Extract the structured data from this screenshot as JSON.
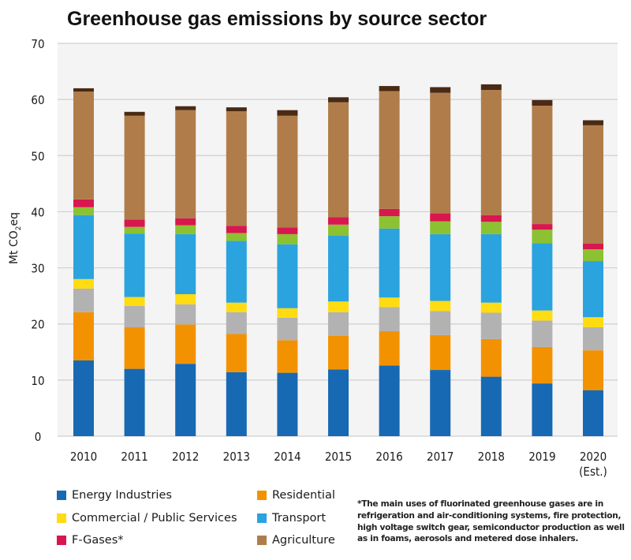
{
  "chart_data": {
    "type": "bar",
    "stacked": true,
    "title": "Greenhouse gas emissions by source sector",
    "xlabel": "",
    "ylabel": "Mt CO2eq",
    "ylabel_parts": {
      "main": "Mt CO",
      "sub": "2",
      "suffix": "eq"
    },
    "ylim": [
      0,
      70
    ],
    "yticks": [
      0,
      10,
      20,
      30,
      40,
      50,
      60,
      70
    ],
    "grid": true,
    "legend_position": "bottom",
    "categories": [
      "2010",
      "2011",
      "2012",
      "2013",
      "2014",
      "2015",
      "2016",
      "2017",
      "2018",
      "2019",
      "2020"
    ],
    "category_sublabels": [
      "",
      "",
      "",
      "",
      "",
      "",
      "",
      "",
      "",
      "",
      "(Est.)"
    ],
    "series": [
      {
        "name": "Energy Industries",
        "color": "#1769b3",
        "in_legend": true,
        "values": [
          13.5,
          12.0,
          12.9,
          11.4,
          11.3,
          11.9,
          12.6,
          11.8,
          10.6,
          9.4,
          8.2
        ]
      },
      {
        "name": "Residential",
        "color": "#f39200",
        "in_legend": true,
        "values": [
          8.6,
          7.4,
          7.0,
          6.8,
          5.8,
          6.0,
          6.1,
          6.2,
          6.7,
          6.5,
          7.1
        ]
      },
      {
        "name": "",
        "color": "#b2b2b2",
        "in_legend": false,
        "values": [
          4.2,
          3.8,
          3.6,
          3.9,
          4.0,
          4.2,
          4.3,
          4.3,
          4.7,
          4.7,
          4.1
        ]
      },
      {
        "name": "Commercial / Public Services",
        "color": "#ffdc12",
        "in_legend": true,
        "values": [
          1.7,
          1.6,
          1.8,
          1.7,
          1.7,
          1.9,
          1.7,
          1.8,
          1.8,
          1.8,
          1.8
        ]
      },
      {
        "name": "Transport",
        "color": "#2aa3df",
        "in_legend": true,
        "values": [
          11.4,
          11.3,
          10.7,
          11.0,
          11.4,
          11.7,
          12.3,
          11.9,
          12.2,
          12.0,
          10.0
        ]
      },
      {
        "name": "",
        "color": "#8cc131",
        "in_legend": false,
        "values": [
          1.4,
          1.2,
          1.6,
          1.4,
          1.8,
          2.0,
          2.2,
          2.3,
          2.2,
          2.4,
          2.1
        ]
      },
      {
        "name": "F-Gases*",
        "color": "#d8174f",
        "in_legend": true,
        "values": [
          1.4,
          1.3,
          1.2,
          1.3,
          1.2,
          1.3,
          1.3,
          1.4,
          1.2,
          1.0,
          1.0
        ]
      },
      {
        "name": "Agriculture",
        "color": "#b07d4a",
        "in_legend": true,
        "values": [
          19.2,
          18.5,
          19.3,
          20.4,
          19.9,
          20.5,
          21.0,
          21.5,
          22.3,
          21.1,
          21.1
        ]
      },
      {
        "name": "",
        "color": "#4a2a14",
        "in_legend": false,
        "values": [
          0.6,
          0.7,
          0.7,
          0.7,
          1.0,
          0.9,
          0.9,
          1.0,
          1.0,
          1.0,
          0.9
        ]
      }
    ],
    "legend": [
      {
        "label": "Energy Industries",
        "color": "#1769b3"
      },
      {
        "label": "Residential",
        "color": "#f39200"
      },
      {
        "label": "Commercial / Public Services",
        "color": "#ffdc12"
      },
      {
        "label": "Transport",
        "color": "#2aa3df"
      },
      {
        "label": "F-Gases*",
        "color": "#d8174f"
      },
      {
        "label": "Agriculture",
        "color": "#b07d4a"
      }
    ],
    "footnote": "*The main uses of fluorinated greenhouse gases are in refrigeration and air-conditioning systems, fire protection, high voltage switch gear, semiconductor production as well as in foams, aerosols and metered dose inhalers."
  },
  "colors": {
    "plot_background": "#f4f4f4",
    "gridline": "#cfcfcf"
  }
}
